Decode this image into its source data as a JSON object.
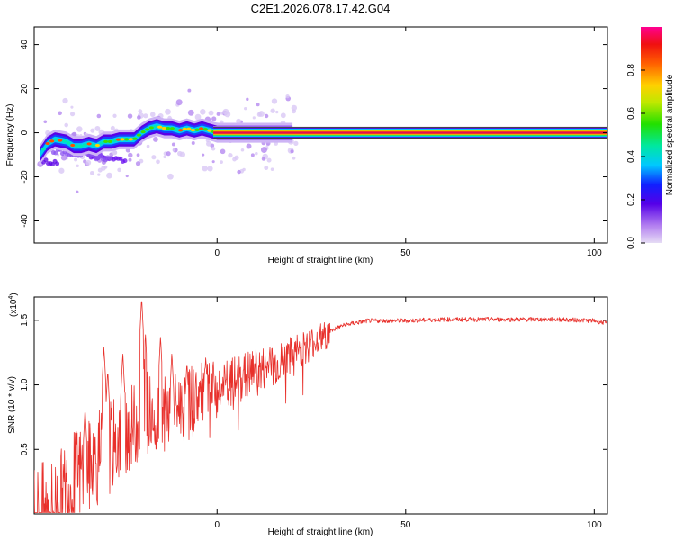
{
  "title": "C2E1.2026.078.17.42.G04",
  "chart_data": [
    {
      "type": "heatmap",
      "xlabel": "Height of straight line (km)",
      "ylabel": "Frequency (Hz)",
      "xlim": [
        -48.5,
        103.5
      ],
      "ylim": [
        -50,
        48
      ],
      "xticks": [
        "0",
        "50",
        "100"
      ],
      "yticks": [
        "-40",
        "-20",
        "0",
        "20",
        "40"
      ],
      "ytick_values": [
        -40,
        -20,
        0,
        20,
        40
      ],
      "xtick_values": [
        0,
        50,
        100
      ],
      "colorbar": {
        "label": "Normalized spectral amplitude",
        "range": [
          0,
          1
        ],
        "ticks": [
          "0.0",
          "0.2",
          "0.4",
          "0.6",
          "0.8"
        ],
        "tick_values": [
          0.0,
          0.2,
          0.4,
          0.6,
          0.8
        ]
      },
      "ridge": {
        "x": [
          -47,
          -45,
          -43,
          -40,
          -38,
          -36,
          -34,
          -32,
          -30,
          -28,
          -26,
          -24,
          -22,
          -20,
          -18,
          -16,
          -14,
          -12,
          -10,
          -8,
          -6,
          -4,
          -2,
          0,
          3,
          6,
          9,
          12,
          15,
          20,
          30,
          50,
          80,
          103
        ],
        "freq": [
          -10,
          -5,
          -3,
          -4,
          -6,
          -6,
          -5,
          -6,
          -4,
          -4,
          -3,
          -3,
          -3,
          0,
          2,
          3,
          2,
          2,
          1,
          2,
          1,
          2,
          1,
          0,
          0,
          0,
          0,
          0,
          0,
          0,
          0,
          0,
          0,
          0
        ]
      }
    },
    {
      "type": "line",
      "xlabel": "Height of straight line (km)",
      "ylabel": "SNR (10 * v/v)",
      "yscale_label": "(x10",
      "yscale_exp": "4",
      "yscale_close": ")",
      "xlim": [
        -48.5,
        103.5
      ],
      "ylim": [
        0,
        1.68
      ],
      "xticks": [
        "0",
        "50",
        "100"
      ],
      "yticks": [
        "0.5",
        "1.0",
        "1.5"
      ],
      "xtick_values": [
        0,
        50,
        100
      ],
      "ytick_values": [
        0.5,
        1.0,
        1.5
      ],
      "series_color": "#e8302b",
      "trend": {
        "x": [
          -48.5,
          -45,
          -42,
          -39,
          -36,
          -33,
          -30,
          -27,
          -24,
          -21,
          -18,
          -15,
          -12,
          -9,
          -6,
          -3,
          0,
          3,
          6,
          9,
          12,
          15,
          18,
          21,
          24,
          27,
          30,
          33,
          36,
          40,
          45,
          50,
          60,
          70,
          80,
          90,
          100,
          103.5
        ],
        "snr": [
          0.05,
          0.07,
          0.15,
          0.3,
          0.4,
          0.45,
          0.55,
          0.62,
          0.7,
          0.78,
          0.85,
          0.82,
          0.85,
          0.92,
          0.95,
          0.98,
          1.0,
          1.02,
          1.08,
          1.12,
          1.15,
          1.18,
          1.22,
          1.28,
          1.33,
          1.38,
          1.42,
          1.46,
          1.48,
          1.5,
          1.5,
          1.5,
          1.51,
          1.51,
          1.51,
          1.51,
          1.5,
          1.48
        ]
      },
      "peaks": {
        "x": [
          -35,
          -30,
          -29,
          -25,
          -20,
          -19,
          -15,
          -12,
          -8,
          -3,
          2,
          7,
          10,
          14,
          19,
          23
        ],
        "snr": [
          0.82,
          1.3,
          1.12,
          1.25,
          1.68,
          1.4,
          1.38,
          1.25,
          1.18,
          1.22,
          1.05,
          1.15,
          1.2,
          1.3,
          1.35,
          1.4
        ]
      }
    }
  ]
}
